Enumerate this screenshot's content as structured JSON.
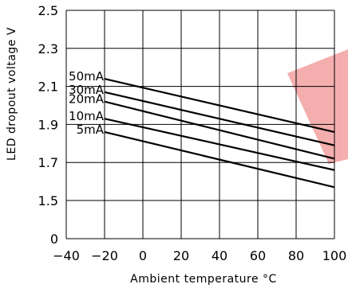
{
  "chart_data": {
    "type": "line",
    "xlabel": "Ambient temperature °C",
    "ylabel": "LED dropout voltage V",
    "xlim": [
      -40,
      100
    ],
    "ylim_note": "axis break between 0 and 1.5",
    "x_ticks": [
      "−40",
      "−20",
      "0",
      "20",
      "40",
      "60",
      "80",
      "100"
    ],
    "y_ticks": [
      "0",
      "1.5",
      "1.7",
      "1.9",
      "2.1",
      "2.3",
      "2.5"
    ],
    "grid": true,
    "x": [
      -20,
      100
    ],
    "series": [
      {
        "name": "50mA",
        "values": [
          2.14,
          1.86
        ]
      },
      {
        "name": "30mA",
        "values": [
          2.07,
          1.79
        ]
      },
      {
        "name": "20mA",
        "values": [
          2.02,
          1.72
        ]
      },
      {
        "name": "10mA",
        "values": [
          1.93,
          1.66
        ]
      },
      {
        "name": "5mA",
        "values": [
          1.86,
          1.57
        ]
      }
    ]
  },
  "watermark_color": "#f2a0a0"
}
